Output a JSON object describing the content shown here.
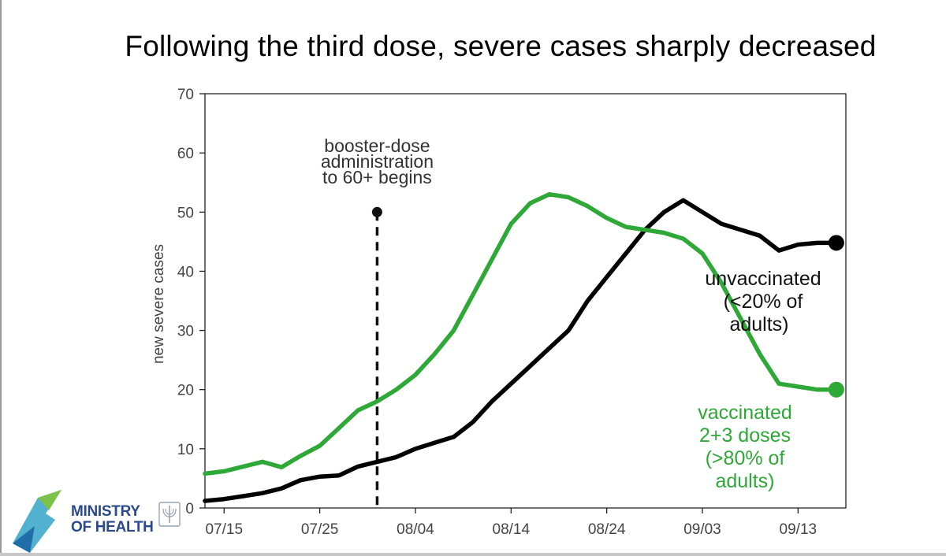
{
  "header": {
    "title": "Following the third dose, severe cases sharply decreased"
  },
  "logo": {
    "line1": "MINISTRY",
    "line2": "OF HEALTH"
  },
  "chart_data": {
    "type": "line",
    "title": "Following the third dose, severe cases sharply decreased",
    "xlabel": "",
    "ylabel": "new severe cases",
    "x_start": "2021-07-13",
    "x_end": "2021-09-18",
    "x_ticks": [
      "07/15",
      "07/25",
      "08/04",
      "08/14",
      "08/24",
      "09/03",
      "09/13"
    ],
    "ylim": [
      0,
      70
    ],
    "y_ticks": [
      0,
      10,
      20,
      30,
      40,
      50,
      60,
      70
    ],
    "grid": false,
    "series": [
      {
        "name": "unvaccinated (<20% of adults)",
        "color": "#000000",
        "points": [
          [
            "07/13",
            1.2
          ],
          [
            "07/15",
            1.5
          ],
          [
            "07/17",
            2.0
          ],
          [
            "07/19",
            2.5
          ],
          [
            "07/21",
            3.3
          ],
          [
            "07/23",
            4.7
          ],
          [
            "07/25",
            5.3
          ],
          [
            "07/27",
            5.5
          ],
          [
            "07/29",
            7.0
          ],
          [
            "07/31",
            7.8
          ],
          [
            "08/02",
            8.6
          ],
          [
            "08/04",
            10.0
          ],
          [
            "08/06",
            11.0
          ],
          [
            "08/08",
            12.0
          ],
          [
            "08/10",
            14.5
          ],
          [
            "08/12",
            18.0
          ],
          [
            "08/14",
            21.0
          ],
          [
            "08/16",
            24.0
          ],
          [
            "08/18",
            27.0
          ],
          [
            "08/20",
            30.0
          ],
          [
            "08/22",
            35.0
          ],
          [
            "08/24",
            39.0
          ],
          [
            "08/26",
            43.0
          ],
          [
            "08/28",
            47.0
          ],
          [
            "08/30",
            50.0
          ],
          [
            "09/01",
            52.0
          ],
          [
            "09/03",
            50.0
          ],
          [
            "09/05",
            48.0
          ],
          [
            "09/07",
            47.0
          ],
          [
            "09/09",
            46.0
          ],
          [
            "09/11",
            43.5
          ],
          [
            "09/13",
            44.5
          ],
          [
            "09/15",
            44.8
          ],
          [
            "09/17",
            44.8
          ]
        ],
        "end_label": [
          "unvaccinated",
          "(<20% of",
          "adults)"
        ]
      },
      {
        "name": "vaccinated 2+3 doses (>80% of adults)",
        "color": "#2ea836",
        "points": [
          [
            "07/13",
            5.8
          ],
          [
            "07/15",
            6.2
          ],
          [
            "07/17",
            7.0
          ],
          [
            "07/19",
            7.8
          ],
          [
            "07/21",
            6.9
          ],
          [
            "07/23",
            8.8
          ],
          [
            "07/25",
            10.5
          ],
          [
            "07/27",
            13.5
          ],
          [
            "07/29",
            16.5
          ],
          [
            "07/31",
            18.0
          ],
          [
            "08/02",
            20.0
          ],
          [
            "08/04",
            22.5
          ],
          [
            "08/06",
            26.0
          ],
          [
            "08/08",
            30.0
          ],
          [
            "08/10",
            36.0
          ],
          [
            "08/12",
            42.0
          ],
          [
            "08/14",
            48.0
          ],
          [
            "08/16",
            51.5
          ],
          [
            "08/18",
            53.0
          ],
          [
            "08/20",
            52.5
          ],
          [
            "08/22",
            51.0
          ],
          [
            "08/24",
            49.0
          ],
          [
            "08/26",
            47.5
          ],
          [
            "08/28",
            47.0
          ],
          [
            "08/30",
            46.5
          ],
          [
            "09/01",
            45.5
          ],
          [
            "09/03",
            43.0
          ],
          [
            "09/05",
            38.0
          ],
          [
            "09/07",
            32.0
          ],
          [
            "09/09",
            26.0
          ],
          [
            "09/11",
            21.0
          ],
          [
            "09/13",
            20.5
          ],
          [
            "09/15",
            20.0
          ],
          [
            "09/17",
            20.0
          ]
        ],
        "end_label": [
          "vaccinated",
          "2+3 doses",
          "(>80% of",
          "adults)"
        ]
      }
    ],
    "annotations": [
      {
        "type": "vline",
        "x": "07/31",
        "y_top": 50,
        "style": "dashed",
        "text": [
          "booster-dose",
          "administration",
          "to 60+ begins"
        ]
      }
    ]
  }
}
